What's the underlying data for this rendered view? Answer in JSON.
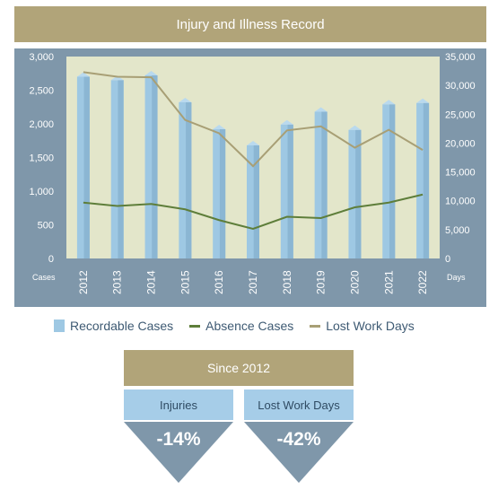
{
  "title": "Injury and Illness Record",
  "legend": {
    "recordable": "Recordable Cases",
    "absence": "Absence Cases",
    "lost_days": "Lost Work Days"
  },
  "since": {
    "title": "Since 2012",
    "stats": [
      {
        "label": "Injuries",
        "value": "-14%"
      },
      {
        "label": "Lost Work Days",
        "value": "-42%"
      }
    ]
  },
  "colors": {
    "gold": "#b1a479",
    "panel": "#7f97aa",
    "plot_bg": "#e3e6ca",
    "bar": "#9ec8e3",
    "absence_line": "#5e7e3a",
    "lost_line": "#a89f75"
  },
  "chart_data": {
    "type": "bar",
    "categories": [
      "2012",
      "2013",
      "2014",
      "2015",
      "2016",
      "2017",
      "2018",
      "2019",
      "2020",
      "2021",
      "2022"
    ],
    "left_axis": {
      "label": "Cases",
      "ticks": [
        "0",
        "500",
        "1,000",
        "1,500",
        "2,000",
        "2,500",
        "3,000"
      ],
      "ylim": [
        0,
        3000
      ]
    },
    "right_axis": {
      "label": "Days",
      "ticks": [
        "0",
        "5,000",
        "10,000",
        "15,000",
        "20,000",
        "25,000",
        "30,000",
        "35,000"
      ],
      "ylim": [
        0,
        35000
      ]
    },
    "series": [
      {
        "name": "Recordable Cases",
        "type": "bar",
        "axis": "left",
        "values": [
          2700,
          2650,
          2720,
          2320,
          1920,
          1680,
          1990,
          2180,
          1910,
          2290,
          2310
        ]
      },
      {
        "name": "Absence Cases",
        "type": "line",
        "axis": "left",
        "values": [
          830,
          780,
          810,
          730,
          570,
          440,
          620,
          600,
          760,
          830,
          950
        ]
      },
      {
        "name": "Lost Work Days",
        "type": "line",
        "axis": "right",
        "values": [
          32300,
          31500,
          31400,
          24000,
          21700,
          16000,
          22200,
          22900,
          19200,
          22300,
          18800
        ]
      }
    ],
    "grid": false
  }
}
